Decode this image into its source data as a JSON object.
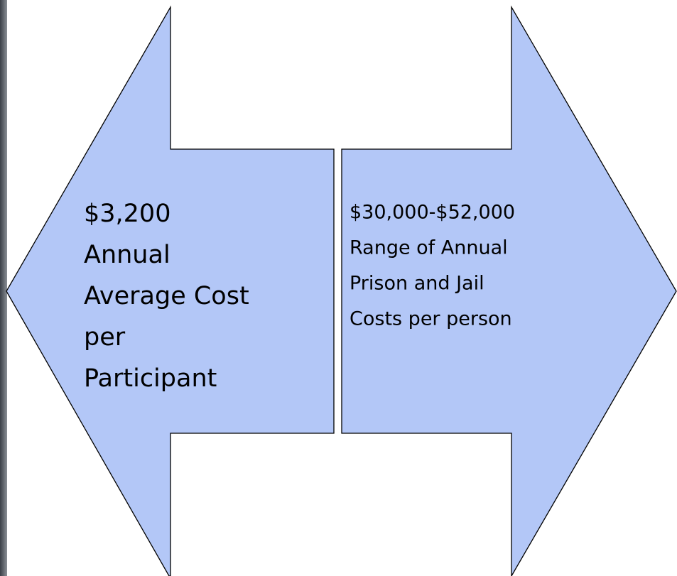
{
  "left_arrow": {
    "lines": [
      "$3,200",
      "Annual",
      "Average Cost",
      "per",
      "Participant"
    ]
  },
  "right_arrow": {
    "lines": [
      "$30,000-$52,000",
      "Range of  Annual",
      "Prison and Jail",
      "Costs per person"
    ]
  }
}
